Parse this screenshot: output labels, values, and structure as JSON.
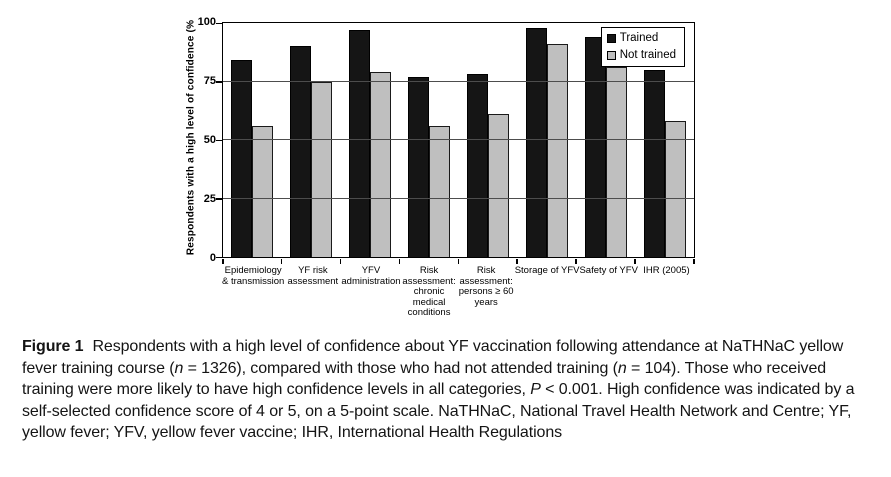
{
  "caption": {
    "segments": [
      {
        "text": "Figure 1",
        "bold": true
      },
      {
        "text": "Respondents with a high level of confidence about YF vaccination following attendance at NaTHNaC yellow fever training course ("
      },
      {
        "text": "n",
        "italic": true
      },
      {
        "text": " = 1326), compared with those who had not attended training ("
      },
      {
        "text": "n",
        "italic": true
      },
      {
        "text": " = 104). Those who received training were more likely to have high confidence levels in all categories, "
      },
      {
        "text": "P",
        "italic": true
      },
      {
        "text": " < 0.001. High confidence was indicated by a self-selected confidence score of 4 or 5, on a 5-point scale. NaTHNaC, National Travel Health Network and Centre; YF, yellow fever; YFV, yellow fever vaccine; IHR, International Health Regulations"
      }
    ]
  },
  "chart_data": {
    "type": "bar",
    "title": "",
    "xlabel": "",
    "ylabel": "Respondents with a high level of confidence (%",
    "ylim": [
      0,
      100
    ],
    "yticks": [
      0,
      25,
      50,
      75,
      100
    ],
    "grid": true,
    "legend_position": "top-right-inside",
    "categories": [
      {
        "label": "Epidemiology & transmission",
        "lines": [
          "Epidemiology",
          "& transmission"
        ]
      },
      {
        "label": "YF risk assessment",
        "lines": [
          "YF risk",
          "assessment"
        ]
      },
      {
        "label": "YFV administration",
        "lines": [
          "YFV",
          "administration"
        ]
      },
      {
        "label": "Risk assessment: chronic medical conditions",
        "lines": [
          "Risk",
          "assessment:",
          "chronic",
          "medical",
          "conditions"
        ]
      },
      {
        "label": "Risk assessment: persons ≥ 60 years",
        "lines": [
          "Risk",
          "assessment:",
          "persons ≥ 60",
          "years"
        ]
      },
      {
        "label": "Storage of YFV",
        "lines": [
          "Storage of YFV"
        ]
      },
      {
        "label": "Safety of YFV",
        "lines": [
          "Safety of YFV"
        ]
      },
      {
        "label": "IHR (2005)",
        "lines": [
          "IHR (2005)"
        ]
      }
    ],
    "series": [
      {
        "name": "Trained",
        "color": "#151515",
        "values": [
          84,
          90,
          97,
          77,
          78,
          98,
          94,
          80
        ]
      },
      {
        "name": "Not trained",
        "color": "#bfbfbf",
        "values": [
          56,
          75,
          79,
          56,
          61,
          91,
          81,
          58
        ]
      }
    ]
  }
}
